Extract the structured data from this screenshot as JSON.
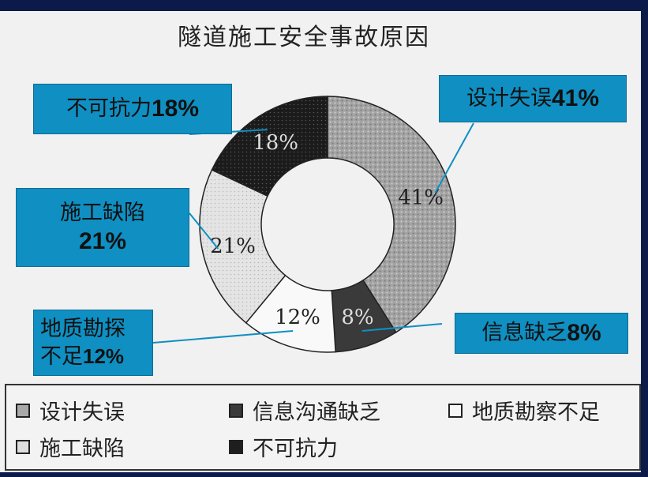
{
  "chart_data": {
    "type": "pie",
    "title": "隧道施工安全事故原因",
    "slices": [
      {
        "label": "设计失误",
        "value": 41,
        "data_label": "41%",
        "callout_name": "设计失误",
        "callout_value": "41%",
        "color": "#a9a9a9",
        "pattern": "speckle"
      },
      {
        "label": "信息沟通缺乏",
        "value": 8,
        "data_label": "8%",
        "callout_name": "信息缺乏",
        "callout_value": "8%",
        "color": "#3a3a3a",
        "pattern": "solid"
      },
      {
        "label": "地质勘察不足",
        "value": 12,
        "data_label": "12%",
        "callout_name": "地质勘探不足",
        "callout_value": "12%",
        "color": "#f7f7f7",
        "pattern": "white"
      },
      {
        "label": "施工缺陷",
        "value": 21,
        "data_label": "21%",
        "callout_name": "施工缺陷",
        "callout_value": "21%",
        "color": "#dedede",
        "pattern": "light"
      },
      {
        "label": "不可抗力",
        "value": 18,
        "data_label": "18%",
        "callout_name": "不可抗力",
        "callout_value": "18%",
        "color": "#1e1e1e",
        "pattern": "dark"
      }
    ],
    "legend_position": "bottom",
    "legend": [
      {
        "label": "设计失误",
        "color": "#a9a9a9"
      },
      {
        "label": "信息沟通缺乏",
        "color": "#3a3a3a"
      },
      {
        "label": "地质勘察不足",
        "color": "#f7f7f7"
      },
      {
        "label": "施工缺陷",
        "color": "#dedede"
      },
      {
        "label": "不可抗力",
        "color": "#1e1e1e"
      }
    ]
  },
  "colors": {
    "callout_bg": "#0f8fc2",
    "frame": "#0c1a4a"
  }
}
